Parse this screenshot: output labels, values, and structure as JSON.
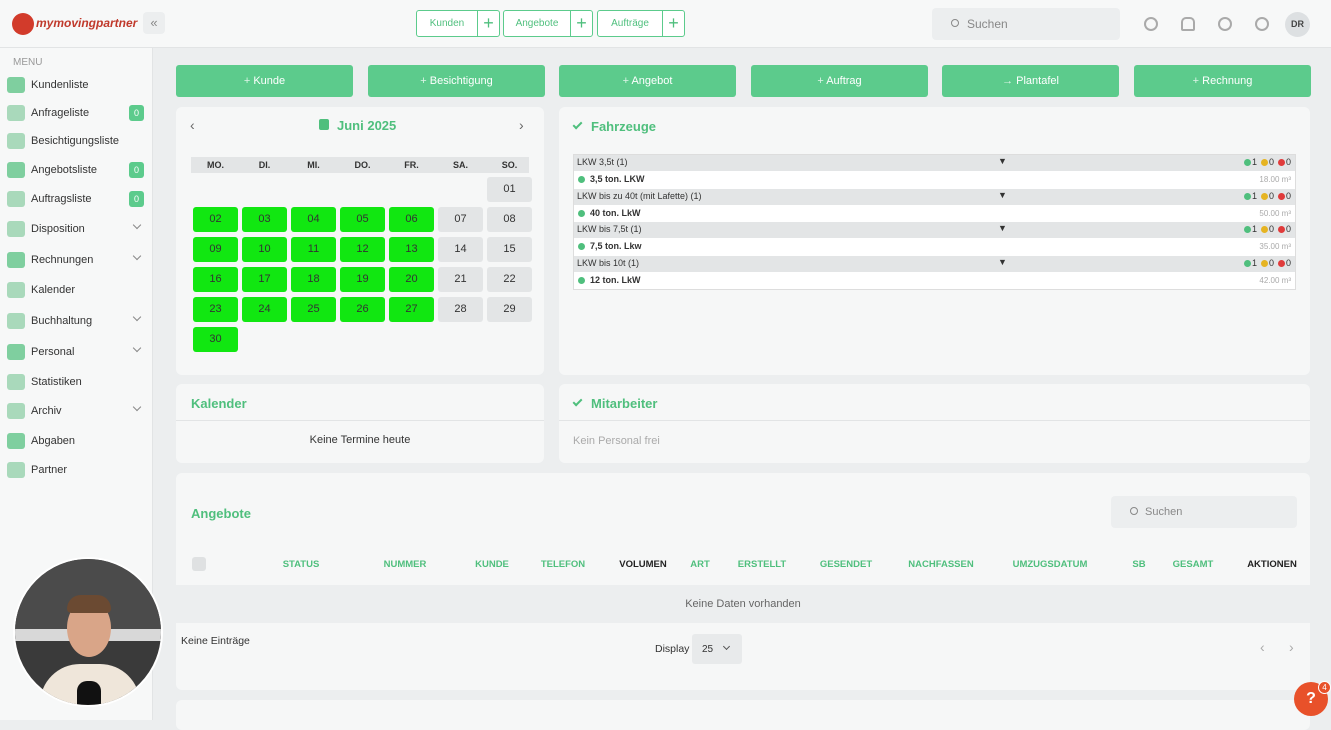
{
  "header": {
    "logo": "mymovingpartner",
    "tabs": [
      "Kunden",
      "Angebote",
      "Aufträge"
    ],
    "search_placeholder": "Suchen",
    "avatar": "DR"
  },
  "sidebar": {
    "heading": "MENU",
    "items": [
      {
        "label": "Kundenliste"
      },
      {
        "label": "Anfrageliste",
        "badge": 0
      },
      {
        "label": "Besichtigungsliste"
      },
      {
        "label": "Angebotsliste",
        "badge": 0
      },
      {
        "label": "Auftragsliste",
        "badge": 0
      },
      {
        "label": "Disposition",
        "expandable": true
      },
      {
        "label": "Rechnungen",
        "expandable": true
      },
      {
        "label": "Kalender"
      },
      {
        "label": "Buchhaltung",
        "expandable": true
      },
      {
        "label": "Personal",
        "expandable": true
      },
      {
        "label": "Statistiken"
      },
      {
        "label": "Archiv",
        "expandable": true
      },
      {
        "label": "Abgaben"
      },
      {
        "label": "Partner"
      }
    ]
  },
  "actions": [
    "Kunde",
    "Besichtigung",
    "Angebot",
    "Auftrag",
    "Plantafel",
    "Rechnung"
  ],
  "calendar": {
    "month": "Juni 2025",
    "weekdays": [
      "MO.",
      "DI.",
      "MI.",
      "DO.",
      "FR.",
      "SA.",
      "SO."
    ],
    "days": [
      "01",
      "02",
      "03",
      "04",
      "05",
      "06",
      "07",
      "08",
      "09",
      "10",
      "11",
      "12",
      "13",
      "14",
      "15",
      "16",
      "17",
      "18",
      "19",
      "20",
      "21",
      "22",
      "23",
      "24",
      "25",
      "26",
      "27",
      "28",
      "29",
      "30"
    ]
  },
  "vehicles": {
    "title": "Fahrzeuge",
    "groups": [
      {
        "name": "LKW 3,5t (1)",
        "counts": [
          1,
          0,
          0
        ],
        "vehicle": "3,5 ton. LKW",
        "volume": "18.00 m³"
      },
      {
        "name": "LKW bis zu 40t (mit Lafette) (1)",
        "counts": [
          1,
          0,
          0
        ],
        "vehicle": "40 ton. LkW",
        "volume": "50.00 m³"
      },
      {
        "name": "LKW bis 7,5t (1)",
        "counts": [
          1,
          0,
          0
        ],
        "vehicle": "7,5 ton. Lkw",
        "volume": "35.00 m³"
      },
      {
        "name": "LKW bis 10t (1)",
        "counts": [
          1,
          0,
          0
        ],
        "vehicle": "12 ton. LkW",
        "volume": "42.00 m³"
      }
    ]
  },
  "calendar_card": {
    "title": "Kalender",
    "empty": "Keine Termine heute"
  },
  "staff": {
    "title": "Mitarbeiter",
    "empty": "Kein Personal frei"
  },
  "offers": {
    "title": "Angebote",
    "search_placeholder": "Suchen",
    "columns": [
      "STATUS",
      "NUMMER",
      "KUNDE",
      "TELEFON",
      "VOLUMEN",
      "ART",
      "ERSTELLT",
      "GESENDET",
      "NACHFASSEN",
      "UMZUGSDATUM",
      "SB",
      "GESAMT",
      "AKTIONEN"
    ],
    "empty": "Keine Daten vorhanden",
    "entries": "Keine Einträge",
    "display_label": "Display",
    "page_size": 25
  },
  "help": {
    "label": "?",
    "badge": 4
  }
}
